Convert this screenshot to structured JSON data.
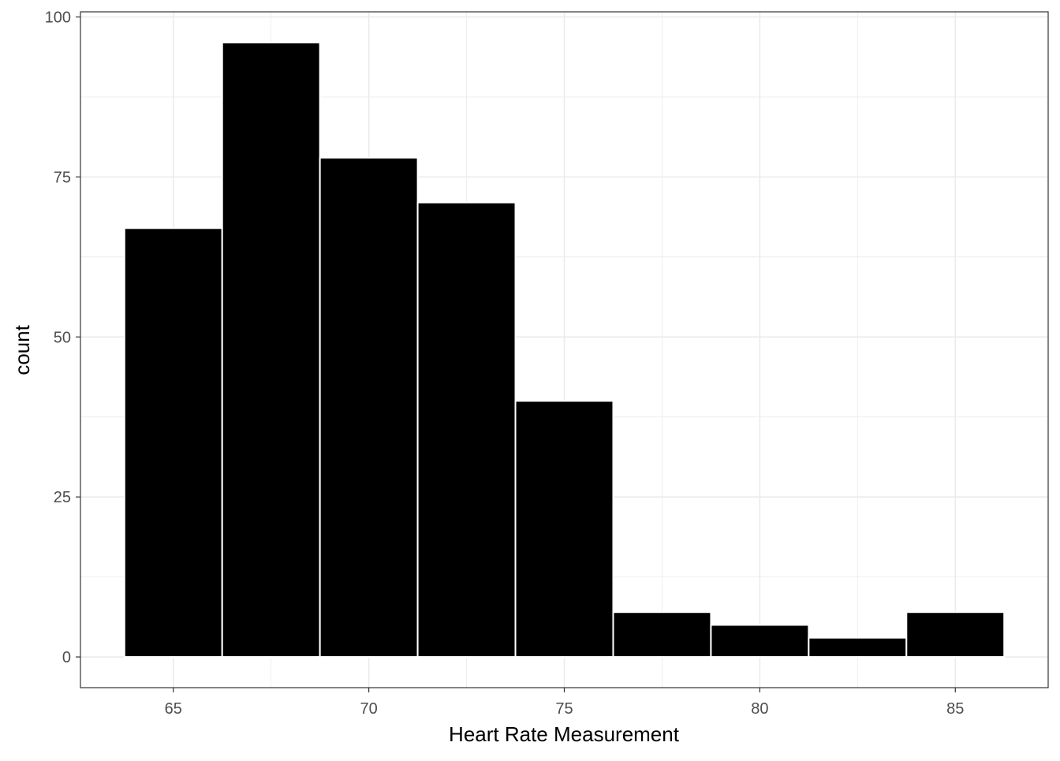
{
  "chart_data": {
    "type": "bar",
    "subtype": "histogram",
    "title": "",
    "xlabel": "Heart Rate Measurement",
    "ylabel": "count",
    "bins": [
      {
        "x0": 63.75,
        "x1": 66.25,
        "count": 67
      },
      {
        "x0": 66.25,
        "x1": 68.75,
        "count": 96
      },
      {
        "x0": 68.75,
        "x1": 71.25,
        "count": 78
      },
      {
        "x0": 71.25,
        "x1": 73.75,
        "count": 71
      },
      {
        "x0": 73.75,
        "x1": 76.25,
        "count": 40
      },
      {
        "x0": 76.25,
        "x1": 78.75,
        "count": 7
      },
      {
        "x0": 78.75,
        "x1": 81.25,
        "count": 5
      },
      {
        "x0": 81.25,
        "x1": 83.75,
        "count": 3
      },
      {
        "x0": 83.75,
        "x1": 86.25,
        "count": 7
      }
    ],
    "xlim": [
      62.625,
      87.375
    ],
    "ylim": [
      -4.8,
      100.8
    ],
    "x_ticks": [
      65,
      70,
      75,
      80,
      85
    ],
    "x_tick_labels": [
      "65",
      "70",
      "75",
      "80",
      "85"
    ],
    "y_ticks": [
      0,
      25,
      50,
      75,
      100
    ],
    "y_tick_labels": [
      "0",
      "25",
      "50",
      "75",
      "100"
    ],
    "grid": true,
    "bar_fill": "#000000",
    "bar_outline": "#ffffff",
    "grid_color": "#ebebeb",
    "panel_border_color": "#333333"
  }
}
